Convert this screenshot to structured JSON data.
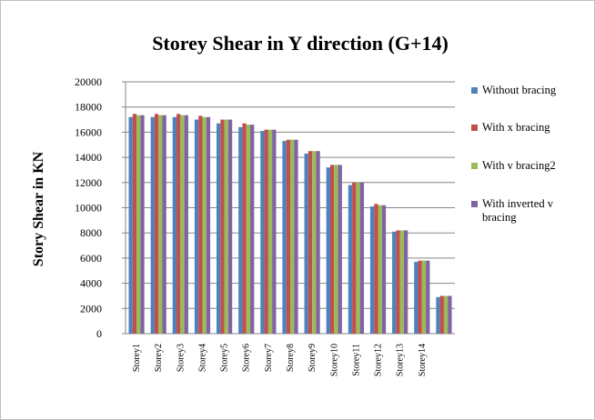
{
  "chart_data": {
    "type": "bar",
    "title": "Storey Shear in Y direction (G+14)",
    "y_label": "Story Shear in KN",
    "categories": [
      "Storey1",
      "Storey2",
      "Storey3",
      "Storey4",
      "Storey5",
      "Storey6",
      "Storey7",
      "Storey8",
      "Storey9",
      "Storey10",
      "Storey11",
      "Storey12",
      "Storey13",
      "Storey14",
      null
    ],
    "series": [
      {
        "name": "Without bracing",
        "color": "#4f81bd",
        "values": [
          17200,
          17200,
          17200,
          17000,
          16700,
          16400,
          16100,
          15300,
          14300,
          13200,
          11800,
          10100,
          8100,
          5700,
          2900
        ]
      },
      {
        "name": "With x bracing",
        "color": "#c0504d",
        "values": [
          17450,
          17450,
          17450,
          17300,
          17000,
          16700,
          16200,
          15400,
          14500,
          13400,
          12000,
          10300,
          8200,
          5800,
          3000
        ]
      },
      {
        "name": "With v bracing2",
        "color": "#9bbb59",
        "values": [
          17350,
          17350,
          17350,
          17200,
          17000,
          16600,
          16200,
          15400,
          14500,
          13400,
          12000,
          10200,
          8200,
          5800,
          3000
        ]
      },
      {
        "name": "With inverted v bracing",
        "color": "#8064a2",
        "values": [
          17350,
          17350,
          17350,
          17200,
          17000,
          16600,
          16200,
          15400,
          14500,
          13400,
          12000,
          10200,
          8200,
          5800,
          3000
        ]
      }
    ],
    "ylim": [
      0,
      20000
    ],
    "yticks": [
      0,
      2000,
      4000,
      6000,
      8000,
      10000,
      12000,
      14000,
      16000,
      18000,
      20000
    ],
    "grid": true,
    "legend": "right"
  }
}
